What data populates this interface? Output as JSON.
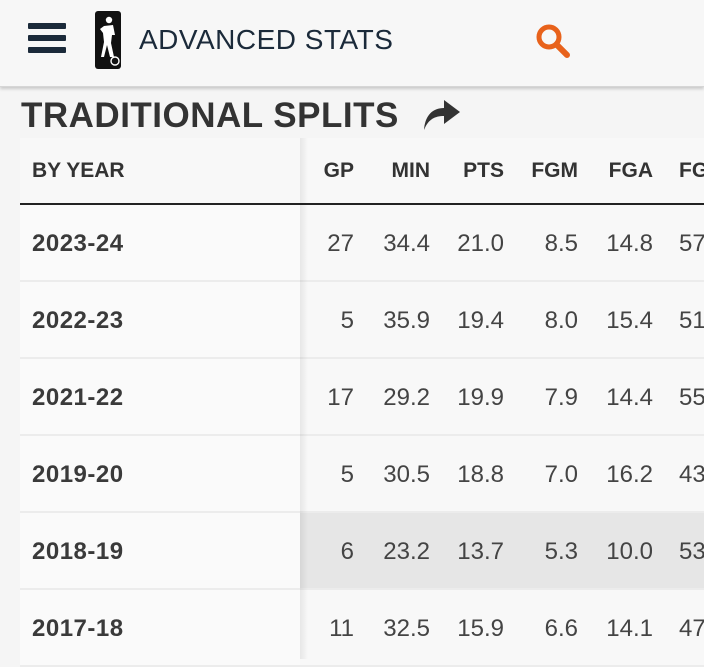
{
  "header": {
    "title": "ADVANCED STATS",
    "menu_icon": "hamburger-menu-icon",
    "logo": "g-league-logo",
    "search_icon": "search-icon",
    "accent_color": "#e8621b"
  },
  "section": {
    "title": "TRADITIONAL SPLITS",
    "share_icon": "share-arrow-icon"
  },
  "table": {
    "columns": [
      "BY YEAR",
      "GP",
      "MIN",
      "PTS",
      "FGM",
      "FGA",
      "FG"
    ],
    "rows": [
      {
        "year": "2023-24",
        "gp": "27",
        "min": "34.4",
        "pts": "21.0",
        "fgm": "8.5",
        "fga": "14.8",
        "fgp": "57"
      },
      {
        "year": "2022-23",
        "gp": "5",
        "min": "35.9",
        "pts": "19.4",
        "fgm": "8.0",
        "fga": "15.4",
        "fgp": "51"
      },
      {
        "year": "2021-22",
        "gp": "17",
        "min": "29.2",
        "pts": "19.9",
        "fgm": "7.9",
        "fga": "14.4",
        "fgp": "55"
      },
      {
        "year": "2019-20",
        "gp": "5",
        "min": "30.5",
        "pts": "18.8",
        "fgm": "7.0",
        "fga": "16.2",
        "fgp": "43"
      },
      {
        "year": "2018-19",
        "gp": "6",
        "min": "23.2",
        "pts": "13.7",
        "fgm": "5.3",
        "fga": "10.0",
        "fgp": "53"
      },
      {
        "year": "2017-18",
        "gp": "11",
        "min": "32.5",
        "pts": "15.9",
        "fgm": "6.6",
        "fga": "14.1",
        "fgp": "47"
      }
    ]
  }
}
